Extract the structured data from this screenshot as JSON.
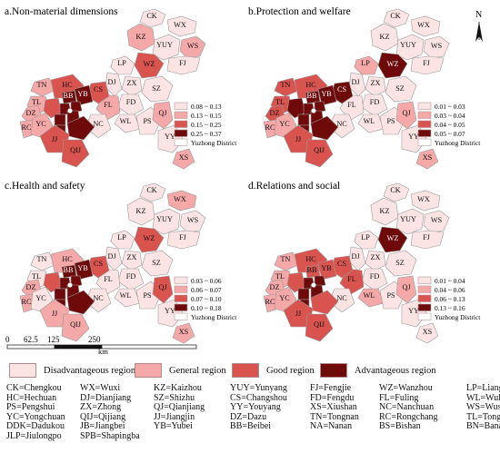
{
  "panels": [
    {
      "id": "a",
      "title": "a.Non-material dimensions",
      "legend": [
        {
          "label": "0.08 ~ 0.13",
          "color": "#fce4e4"
        },
        {
          "label": "0.13 ~ 0.15",
          "color": "#f4a8a8"
        },
        {
          "label": "0.15 ~ 0.25",
          "color": "#d9534f"
        },
        {
          "label": "0.25 ~ 0.37",
          "color": "#6e0a0a"
        },
        {
          "label": "Yuzhong District",
          "color": "#ffffff"
        }
      ]
    },
    {
      "id": "b",
      "title": "b.Protection and welfare",
      "legend": [
        {
          "label": "0.01 ~ 0.03",
          "color": "#fce4e4"
        },
        {
          "label": "0.03 ~ 0.04",
          "color": "#f4a8a8"
        },
        {
          "label": "0.04 ~ 0.05",
          "color": "#d9534f"
        },
        {
          "label": "0.05 ~ 0.07",
          "color": "#6e0a0a"
        },
        {
          "label": "Yuzhong District",
          "color": "#ffffff"
        }
      ]
    },
    {
      "id": "c",
      "title": "c.Health and safety",
      "legend": [
        {
          "label": "0.03 ~ 0.06",
          "color": "#fce4e4"
        },
        {
          "label": "0.06 ~ 0.07",
          "color": "#f4a8a8"
        },
        {
          "label": "0.07 ~ 0.10",
          "color": "#d9534f"
        },
        {
          "label": "0.10 ~ 0.18",
          "color": "#6e0a0a"
        },
        {
          "label": "Yuzhong District",
          "color": "#ffffff"
        }
      ]
    },
    {
      "id": "d",
      "title": "d.Relations and social",
      "legend": [
        {
          "label": "0.01 ~ 0.04",
          "color": "#fce4e4"
        },
        {
          "label": "0.04 ~ 0.06",
          "color": "#f4a8a8"
        },
        {
          "label": "0.06 ~ 0.13",
          "color": "#d9534f"
        },
        {
          "label": "0.13 ~ 0.16",
          "color": "#6e0a0a"
        },
        {
          "label": "Yuzhong District",
          "color": "#ffffff"
        }
      ]
    }
  ],
  "north_arrow": "N",
  "scale_bar": {
    "ticks": [
      "0",
      "62.5",
      "125",
      "250"
    ],
    "unit": "km"
  },
  "region_legend": [
    {
      "label": "Disadvantageous region",
      "color": "#fce4e4"
    },
    {
      "label": "General region",
      "color": "#f4a8a8"
    },
    {
      "label": "Good region",
      "color": "#d9534f"
    },
    {
      "label": "Advantageous region",
      "color": "#6e0a0a"
    }
  ],
  "districts": {
    "CK": {
      "a": 0,
      "b": 0,
      "c": 0,
      "d": 0
    },
    "WX": {
      "a": 0,
      "b": 0,
      "c": 1,
      "d": 0
    },
    "KZ": {
      "a": 1,
      "b": 0,
      "c": 0,
      "d": 0
    },
    "YUY": {
      "a": 0,
      "b": 0,
      "c": 0,
      "d": 0
    },
    "WS": {
      "a": 1,
      "b": 0,
      "c": 0,
      "d": 0
    },
    "FJ": {
      "a": 0,
      "b": 0,
      "c": 0,
      "d": 0
    },
    "WZ": {
      "a": 2,
      "b": 3,
      "c": 2,
      "d": 3
    },
    "LP": {
      "a": 0,
      "b": 1,
      "c": 0,
      "d": 0
    },
    "ZX": {
      "a": 0,
      "b": 0,
      "c": 0,
      "d": 0
    },
    "DJ": {
      "a": 0,
      "b": 0,
      "c": 0,
      "d": 0
    },
    "SZ": {
      "a": 0,
      "b": 0,
      "c": 0,
      "d": 0
    },
    "FD": {
      "a": 0,
      "b": 0,
      "c": 0,
      "d": 0
    },
    "FL": {
      "a": 1,
      "b": 0,
      "c": 0,
      "d": 2
    },
    "WL": {
      "a": 0,
      "b": 0,
      "c": 0,
      "d": 1
    },
    "PS": {
      "a": 0,
      "b": 0,
      "c": 0,
      "d": 0
    },
    "QJ": {
      "a": 1,
      "b": 1,
      "c": 2,
      "d": 1
    },
    "YY": {
      "a": 0,
      "b": 0,
      "c": 0,
      "d": 0
    },
    "XS": {
      "a": 1,
      "b": 1,
      "c": 1,
      "d": 0
    },
    "NC": {
      "a": 0,
      "b": 0,
      "c": 0,
      "d": 0
    },
    "CS": {
      "a": 2,
      "b": 3,
      "c": 2,
      "d": 2
    },
    "TN": {
      "a": 1,
      "b": 2,
      "c": 0,
      "d": 1
    },
    "HC": {
      "a": 2,
      "b": 2,
      "c": 1,
      "d": 2
    },
    "TL": {
      "a": 1,
      "b": 2,
      "c": 0,
      "d": 1
    },
    "RC": {
      "a": 1,
      "b": 1,
      "c": 1,
      "d": 1
    },
    "DZ": {
      "a": 1,
      "b": 2,
      "c": 1,
      "d": 1
    },
    "YC": {
      "a": 1,
      "b": 1,
      "c": 0,
      "d": 1
    },
    "BB": {
      "a": 3,
      "b": 3,
      "c": 3,
      "d": 2
    },
    "YB": {
      "a": 3,
      "b": 3,
      "c": 3,
      "d": 2
    },
    "SPB": {
      "a": 3,
      "b": 3,
      "c": 3,
      "d": 3
    },
    "JB": {
      "a": 3,
      "b": 3,
      "c": 3,
      "d": 3
    },
    "BS": {
      "a": 2,
      "b": 3,
      "c": 2,
      "d": 2
    },
    "JLP": {
      "a": 3,
      "b": 3,
      "c": 3,
      "d": 3
    },
    "NA": {
      "a": 3,
      "b": 3,
      "c": 3,
      "d": 3
    },
    "BN": {
      "a": 3,
      "b": 3,
      "c": 3,
      "d": 2
    },
    "JJ": {
      "a": 2,
      "b": 2,
      "c": 1,
      "d": 2
    },
    "QIJ": {
      "a": 2,
      "b": 2,
      "c": 1,
      "d": 2
    },
    "DDK": {
      "a": 3,
      "b": 3,
      "c": 3,
      "d": 3
    }
  },
  "labels_on_map": [
    "CK",
    "WX",
    "KZ",
    "YUY",
    "WS",
    "FJ",
    "WZ",
    "LP",
    "ZX",
    "DJ",
    "SZ",
    "FD",
    "FL",
    "WL",
    "PS",
    "QJ",
    "YY",
    "XS",
    "NC",
    "CS",
    "TN",
    "HC",
    "TL",
    "RC",
    "DZ",
    "YC",
    "BB",
    "YB",
    "JJ",
    "QIJ"
  ],
  "abbreviations": [
    "CK=Chengkou",
    "WX=Wuxi",
    "KZ=Kaizhou",
    "YUY=Yunyang",
    "FJ=Fengjie",
    "WZ=Wanzhou",
    "LP=Liangping",
    "HC=Hechuan",
    "DJ=Dianjiang",
    "SZ=Shizhu",
    "CS=Changshou",
    "FD=Fengdu",
    "FL=Fuling",
    "WL=Wulong",
    "PS=Pengshui",
    "ZX=Zhong",
    "QJ=Qianjiang",
    "YY=Youyang",
    "XS=Xiushan",
    "NC=Nanchuan",
    "WS=Wushan",
    "YC=Yongchuan",
    "QIJ=Qijiang",
    "JJ=Jiangjin",
    "DZ=Dazu",
    "TN=Tongnan",
    "RC=Rongchang",
    "TL=Tongliang",
    "DDK=Dadukou",
    "JB=Jiangbei",
    "YB=Yubei",
    "BB=Beibei",
    "NA=Nanan",
    "BS=Bishan",
    "BN=Banan",
    "JLP=Jiulongpo",
    "SPB=Shapingba"
  ]
}
